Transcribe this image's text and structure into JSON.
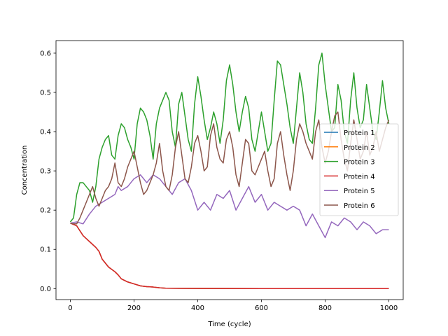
{
  "chart_data": {
    "type": "line",
    "title": "",
    "xlabel": "Time (cycle)",
    "ylabel": "Concentration",
    "xlim": [
      -45,
      1045
    ],
    "ylim": [
      -0.028,
      0.632
    ],
    "xticks": [
      0,
      200,
      400,
      600,
      800,
      1000
    ],
    "yticks": [
      0.0,
      0.1,
      0.2,
      0.3,
      0.4,
      0.5,
      0.6
    ],
    "ytick_labels": [
      "0.0",
      "0.1",
      "0.2",
      "0.3",
      "0.4",
      "0.5",
      "0.6"
    ],
    "grid": false,
    "legend_position": "center-right",
    "series": [
      {
        "name": "Protein 1",
        "color": "#1f77b4",
        "x": [
          0,
          20,
          40,
          60,
          80,
          90,
          100,
          120,
          140,
          150,
          160,
          180,
          200,
          220,
          240,
          260,
          280,
          300,
          400,
          500,
          600,
          700,
          800,
          900,
          1000
        ],
        "y": [
          0.167,
          0.16,
          0.135,
          0.12,
          0.105,
          0.095,
          0.075,
          0.055,
          0.043,
          0.035,
          0.025,
          0.017,
          0.012,
          0.007,
          0.005,
          0.004,
          0.002,
          0.001,
          0.0005,
          0.0003,
          0.0002,
          0.0001,
          0.0001,
          0.0001,
          0.0001
        ]
      },
      {
        "name": "Protein 2",
        "color": "#ff7f0e",
        "x": [
          0,
          20,
          40,
          60,
          80,
          90,
          100,
          120,
          140,
          150,
          160,
          180,
          200,
          220,
          240,
          260,
          280,
          300,
          400,
          500,
          600,
          700,
          800,
          900,
          1000
        ],
        "y": [
          0.167,
          0.16,
          0.135,
          0.12,
          0.105,
          0.095,
          0.075,
          0.055,
          0.043,
          0.035,
          0.025,
          0.017,
          0.012,
          0.007,
          0.005,
          0.004,
          0.002,
          0.001,
          0.0005,
          0.0003,
          0.0002,
          0.0001,
          0.0001,
          0.0001,
          0.0001
        ]
      },
      {
        "name": "Protein 3",
        "color": "#2ca02c",
        "x": [
          0,
          10,
          20,
          30,
          40,
          50,
          60,
          70,
          80,
          90,
          100,
          110,
          120,
          130,
          140,
          150,
          160,
          170,
          180,
          190,
          200,
          210,
          220,
          230,
          240,
          250,
          260,
          270,
          280,
          290,
          300,
          310,
          320,
          330,
          340,
          350,
          360,
          370,
          380,
          390,
          400,
          410,
          420,
          430,
          440,
          450,
          460,
          470,
          480,
          490,
          500,
          510,
          520,
          530,
          540,
          550,
          560,
          570,
          580,
          590,
          600,
          610,
          620,
          630,
          640,
          650,
          660,
          670,
          680,
          690,
          700,
          710,
          720,
          730,
          740,
          750,
          760,
          770,
          780,
          790,
          800,
          810,
          820,
          830,
          840,
          850,
          860,
          870,
          880,
          890,
          900,
          910,
          920,
          930,
          940,
          950,
          960,
          970,
          980,
          990,
          1000
        ],
        "y": [
          0.17,
          0.18,
          0.24,
          0.27,
          0.27,
          0.26,
          0.25,
          0.22,
          0.26,
          0.33,
          0.36,
          0.38,
          0.39,
          0.34,
          0.33,
          0.39,
          0.42,
          0.41,
          0.38,
          0.36,
          0.33,
          0.42,
          0.46,
          0.45,
          0.43,
          0.39,
          0.33,
          0.42,
          0.46,
          0.48,
          0.5,
          0.48,
          0.4,
          0.36,
          0.47,
          0.5,
          0.44,
          0.38,
          0.35,
          0.47,
          0.54,
          0.49,
          0.43,
          0.38,
          0.41,
          0.45,
          0.42,
          0.37,
          0.43,
          0.53,
          0.57,
          0.52,
          0.45,
          0.4,
          0.45,
          0.49,
          0.46,
          0.38,
          0.35,
          0.4,
          0.45,
          0.4,
          0.35,
          0.37,
          0.48,
          0.58,
          0.57,
          0.52,
          0.47,
          0.41,
          0.37,
          0.46,
          0.55,
          0.5,
          0.42,
          0.38,
          0.37,
          0.46,
          0.57,
          0.6,
          0.52,
          0.46,
          0.4,
          0.41,
          0.52,
          0.48,
          0.4,
          0.37,
          0.48,
          0.55,
          0.46,
          0.41,
          0.43,
          0.52,
          0.46,
          0.4,
          0.38,
          0.45,
          0.53,
          0.46,
          0.42
        ]
      },
      {
        "name": "Protein 4",
        "color": "#d62728",
        "x": [
          0,
          20,
          40,
          60,
          80,
          90,
          100,
          120,
          140,
          150,
          160,
          180,
          200,
          220,
          240,
          260,
          280,
          300,
          400,
          500,
          600,
          700,
          800,
          900,
          1000
        ],
        "y": [
          0.167,
          0.16,
          0.135,
          0.12,
          0.105,
          0.095,
          0.075,
          0.055,
          0.043,
          0.035,
          0.025,
          0.017,
          0.012,
          0.007,
          0.005,
          0.004,
          0.002,
          0.001,
          0.0005,
          0.0003,
          0.0002,
          0.0001,
          0.0001,
          0.0001,
          0.0001
        ]
      },
      {
        "name": "Protein 5",
        "color": "#9467bd",
        "x": [
          0,
          20,
          40,
          60,
          80,
          100,
          120,
          140,
          150,
          160,
          180,
          200,
          220,
          240,
          260,
          280,
          300,
          320,
          340,
          360,
          380,
          400,
          420,
          440,
          460,
          480,
          500,
          520,
          540,
          560,
          580,
          600,
          620,
          640,
          660,
          680,
          700,
          720,
          740,
          760,
          780,
          800,
          820,
          840,
          860,
          880,
          900,
          920,
          940,
          960,
          980,
          1000
        ],
        "y": [
          0.167,
          0.17,
          0.165,
          0.19,
          0.21,
          0.22,
          0.23,
          0.24,
          0.26,
          0.25,
          0.26,
          0.28,
          0.29,
          0.27,
          0.29,
          0.28,
          0.26,
          0.24,
          0.27,
          0.28,
          0.25,
          0.2,
          0.22,
          0.2,
          0.24,
          0.23,
          0.25,
          0.2,
          0.23,
          0.26,
          0.22,
          0.24,
          0.2,
          0.22,
          0.21,
          0.2,
          0.21,
          0.2,
          0.16,
          0.19,
          0.16,
          0.13,
          0.17,
          0.16,
          0.18,
          0.17,
          0.15,
          0.17,
          0.16,
          0.14,
          0.15,
          0.15
        ]
      },
      {
        "name": "Protein 6",
        "color": "#8c564b",
        "x": [
          0,
          10,
          20,
          30,
          40,
          50,
          60,
          70,
          80,
          90,
          100,
          110,
          120,
          130,
          140,
          150,
          160,
          170,
          180,
          190,
          200,
          210,
          220,
          230,
          240,
          250,
          260,
          270,
          280,
          290,
          300,
          310,
          320,
          330,
          340,
          350,
          360,
          370,
          380,
          390,
          400,
          410,
          420,
          430,
          440,
          450,
          460,
          470,
          480,
          490,
          500,
          510,
          520,
          530,
          540,
          550,
          560,
          570,
          580,
          590,
          600,
          610,
          620,
          630,
          640,
          650,
          660,
          670,
          680,
          690,
          700,
          710,
          720,
          730,
          740,
          750,
          760,
          770,
          780,
          790,
          800,
          810,
          820,
          830,
          840,
          850,
          860,
          870,
          880,
          890,
          900,
          910,
          920,
          930,
          940,
          950,
          960,
          970,
          980,
          990,
          1000
        ],
        "y": [
          0.167,
          0.165,
          0.165,
          0.18,
          0.2,
          0.22,
          0.24,
          0.26,
          0.23,
          0.21,
          0.23,
          0.25,
          0.26,
          0.28,
          0.32,
          0.27,
          0.26,
          0.28,
          0.31,
          0.33,
          0.35,
          0.31,
          0.27,
          0.24,
          0.25,
          0.27,
          0.29,
          0.32,
          0.37,
          0.3,
          0.26,
          0.25,
          0.29,
          0.36,
          0.4,
          0.34,
          0.28,
          0.27,
          0.31,
          0.37,
          0.39,
          0.35,
          0.3,
          0.31,
          0.39,
          0.42,
          0.36,
          0.33,
          0.32,
          0.38,
          0.4,
          0.36,
          0.29,
          0.26,
          0.32,
          0.38,
          0.37,
          0.3,
          0.29,
          0.31,
          0.33,
          0.35,
          0.3,
          0.26,
          0.28,
          0.37,
          0.4,
          0.34,
          0.29,
          0.25,
          0.3,
          0.38,
          0.42,
          0.4,
          0.37,
          0.35,
          0.33,
          0.4,
          0.43,
          0.36,
          0.32,
          0.35,
          0.4,
          0.44,
          0.45,
          0.38,
          0.33,
          0.3,
          0.37,
          0.43,
          0.38,
          0.33,
          0.35,
          0.4,
          0.34,
          0.36,
          0.4,
          0.35,
          0.38,
          0.41,
          0.43
        ]
      }
    ]
  }
}
